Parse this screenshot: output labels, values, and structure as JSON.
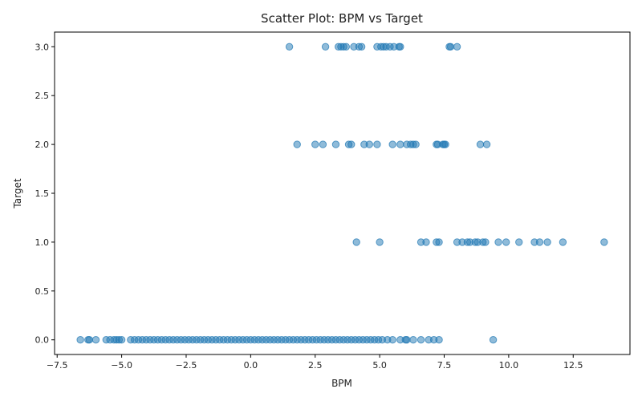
{
  "chart_data": {
    "type": "scatter",
    "title": "Scatter Plot: BPM vs Target",
    "xlabel": "BPM",
    "ylabel": "Target",
    "xlim": [
      -7.6,
      14.7
    ],
    "ylim": [
      -0.15,
      3.15
    ],
    "xticks": [
      -7.5,
      -5.0,
      -2.5,
      0.0,
      2.5,
      5.0,
      7.5,
      10.0,
      12.5
    ],
    "xtick_labels": [
      "−7.5",
      "−5.0",
      "−2.5",
      "0.0",
      "2.5",
      "5.0",
      "7.5",
      "10.0",
      "12.5"
    ],
    "yticks": [
      0.0,
      0.5,
      1.0,
      1.5,
      2.0,
      2.5,
      3.0
    ],
    "ytick_labels": [
      "0.0",
      "0.5",
      "1.0",
      "1.5",
      "2.0",
      "2.5",
      "3.0"
    ],
    "grid": false,
    "color": "#1f77b4",
    "series": [
      {
        "points": [
          [
            1.5,
            3
          ],
          [
            2.9,
            3
          ],
          [
            3.4,
            3
          ],
          [
            3.5,
            3
          ],
          [
            3.6,
            3
          ],
          [
            3.7,
            3
          ],
          [
            4.0,
            3
          ],
          [
            4.2,
            3
          ],
          [
            4.3,
            3
          ],
          [
            4.9,
            3
          ],
          [
            5.05,
            3
          ],
          [
            5.15,
            3
          ],
          [
            5.25,
            3
          ],
          [
            5.4,
            3
          ],
          [
            5.55,
            3
          ],
          [
            5.75,
            3
          ],
          [
            5.8,
            3
          ],
          [
            7.7,
            3
          ],
          [
            7.75,
            3
          ],
          [
            8.0,
            3
          ],
          [
            1.8,
            2
          ],
          [
            2.5,
            2
          ],
          [
            2.8,
            2
          ],
          [
            3.3,
            2
          ],
          [
            3.8,
            2
          ],
          [
            3.9,
            2
          ],
          [
            4.4,
            2
          ],
          [
            4.6,
            2
          ],
          [
            4.9,
            2
          ],
          [
            5.5,
            2
          ],
          [
            5.8,
            2
          ],
          [
            6.05,
            2
          ],
          [
            6.2,
            2
          ],
          [
            6.3,
            2
          ],
          [
            6.4,
            2
          ],
          [
            7.2,
            2
          ],
          [
            7.25,
            2
          ],
          [
            7.45,
            2
          ],
          [
            7.5,
            2
          ],
          [
            7.55,
            2
          ],
          [
            8.9,
            2
          ],
          [
            9.15,
            2
          ],
          [
            4.1,
            1
          ],
          [
            5.0,
            1
          ],
          [
            6.6,
            1
          ],
          [
            6.8,
            1
          ],
          [
            7.2,
            1
          ],
          [
            7.3,
            1
          ],
          [
            8.0,
            1
          ],
          [
            8.2,
            1
          ],
          [
            8.4,
            1
          ],
          [
            8.5,
            1
          ],
          [
            8.7,
            1
          ],
          [
            8.8,
            1
          ],
          [
            9.0,
            1
          ],
          [
            9.1,
            1
          ],
          [
            9.6,
            1
          ],
          [
            9.9,
            1
          ],
          [
            10.4,
            1
          ],
          [
            11.0,
            1
          ],
          [
            11.2,
            1
          ],
          [
            11.5,
            1
          ],
          [
            12.1,
            1
          ],
          [
            13.7,
            1
          ],
          [
            -6.6,
            0
          ],
          [
            -6.3,
            0
          ],
          [
            -6.25,
            0
          ],
          [
            -6.0,
            0
          ],
          [
            -5.6,
            0
          ],
          [
            -5.45,
            0
          ],
          [
            -5.3,
            0
          ],
          [
            -5.2,
            0
          ],
          [
            -5.1,
            0
          ],
          [
            -5.0,
            0
          ],
          [
            -4.65,
            0
          ],
          [
            -4.5,
            0
          ],
          [
            -4.35,
            0
          ],
          [
            -4.2,
            0
          ],
          [
            -4.05,
            0
          ],
          [
            -3.9,
            0
          ],
          [
            -3.75,
            0
          ],
          [
            -3.6,
            0
          ],
          [
            -3.45,
            0
          ],
          [
            -3.3,
            0
          ],
          [
            -3.15,
            0
          ],
          [
            -3.0,
            0
          ],
          [
            -2.85,
            0
          ],
          [
            -2.7,
            0
          ],
          [
            -2.55,
            0
          ],
          [
            -2.4,
            0
          ],
          [
            -2.25,
            0
          ],
          [
            -2.1,
            0
          ],
          [
            -1.95,
            0
          ],
          [
            -1.8,
            0
          ],
          [
            -1.65,
            0
          ],
          [
            -1.5,
            0
          ],
          [
            -1.35,
            0
          ],
          [
            -1.2,
            0
          ],
          [
            -1.05,
            0
          ],
          [
            -0.9,
            0
          ],
          [
            -0.75,
            0
          ],
          [
            -0.6,
            0
          ],
          [
            -0.45,
            0
          ],
          [
            -0.3,
            0
          ],
          [
            -0.15,
            0
          ],
          [
            0.0,
            0
          ],
          [
            0.15,
            0
          ],
          [
            0.3,
            0
          ],
          [
            0.45,
            0
          ],
          [
            0.6,
            0
          ],
          [
            0.75,
            0
          ],
          [
            0.9,
            0
          ],
          [
            1.05,
            0
          ],
          [
            1.2,
            0
          ],
          [
            1.35,
            0
          ],
          [
            1.5,
            0
          ],
          [
            1.65,
            0
          ],
          [
            1.8,
            0
          ],
          [
            1.95,
            0
          ],
          [
            2.1,
            0
          ],
          [
            2.25,
            0
          ],
          [
            2.4,
            0
          ],
          [
            2.55,
            0
          ],
          [
            2.7,
            0
          ],
          [
            2.85,
            0
          ],
          [
            3.0,
            0
          ],
          [
            3.15,
            0
          ],
          [
            3.3,
            0
          ],
          [
            3.45,
            0
          ],
          [
            3.6,
            0
          ],
          [
            3.75,
            0
          ],
          [
            3.9,
            0
          ],
          [
            4.05,
            0
          ],
          [
            4.2,
            0
          ],
          [
            4.35,
            0
          ],
          [
            4.5,
            0
          ],
          [
            4.65,
            0
          ],
          [
            4.8,
            0
          ],
          [
            4.95,
            0
          ],
          [
            5.1,
            0
          ],
          [
            5.3,
            0
          ],
          [
            5.5,
            0
          ],
          [
            5.8,
            0
          ],
          [
            6.0,
            0
          ],
          [
            6.05,
            0
          ],
          [
            6.3,
            0
          ],
          [
            6.6,
            0
          ],
          [
            6.9,
            0
          ],
          [
            7.1,
            0
          ],
          [
            7.3,
            0
          ],
          [
            9.4,
            0
          ]
        ]
      }
    ]
  }
}
